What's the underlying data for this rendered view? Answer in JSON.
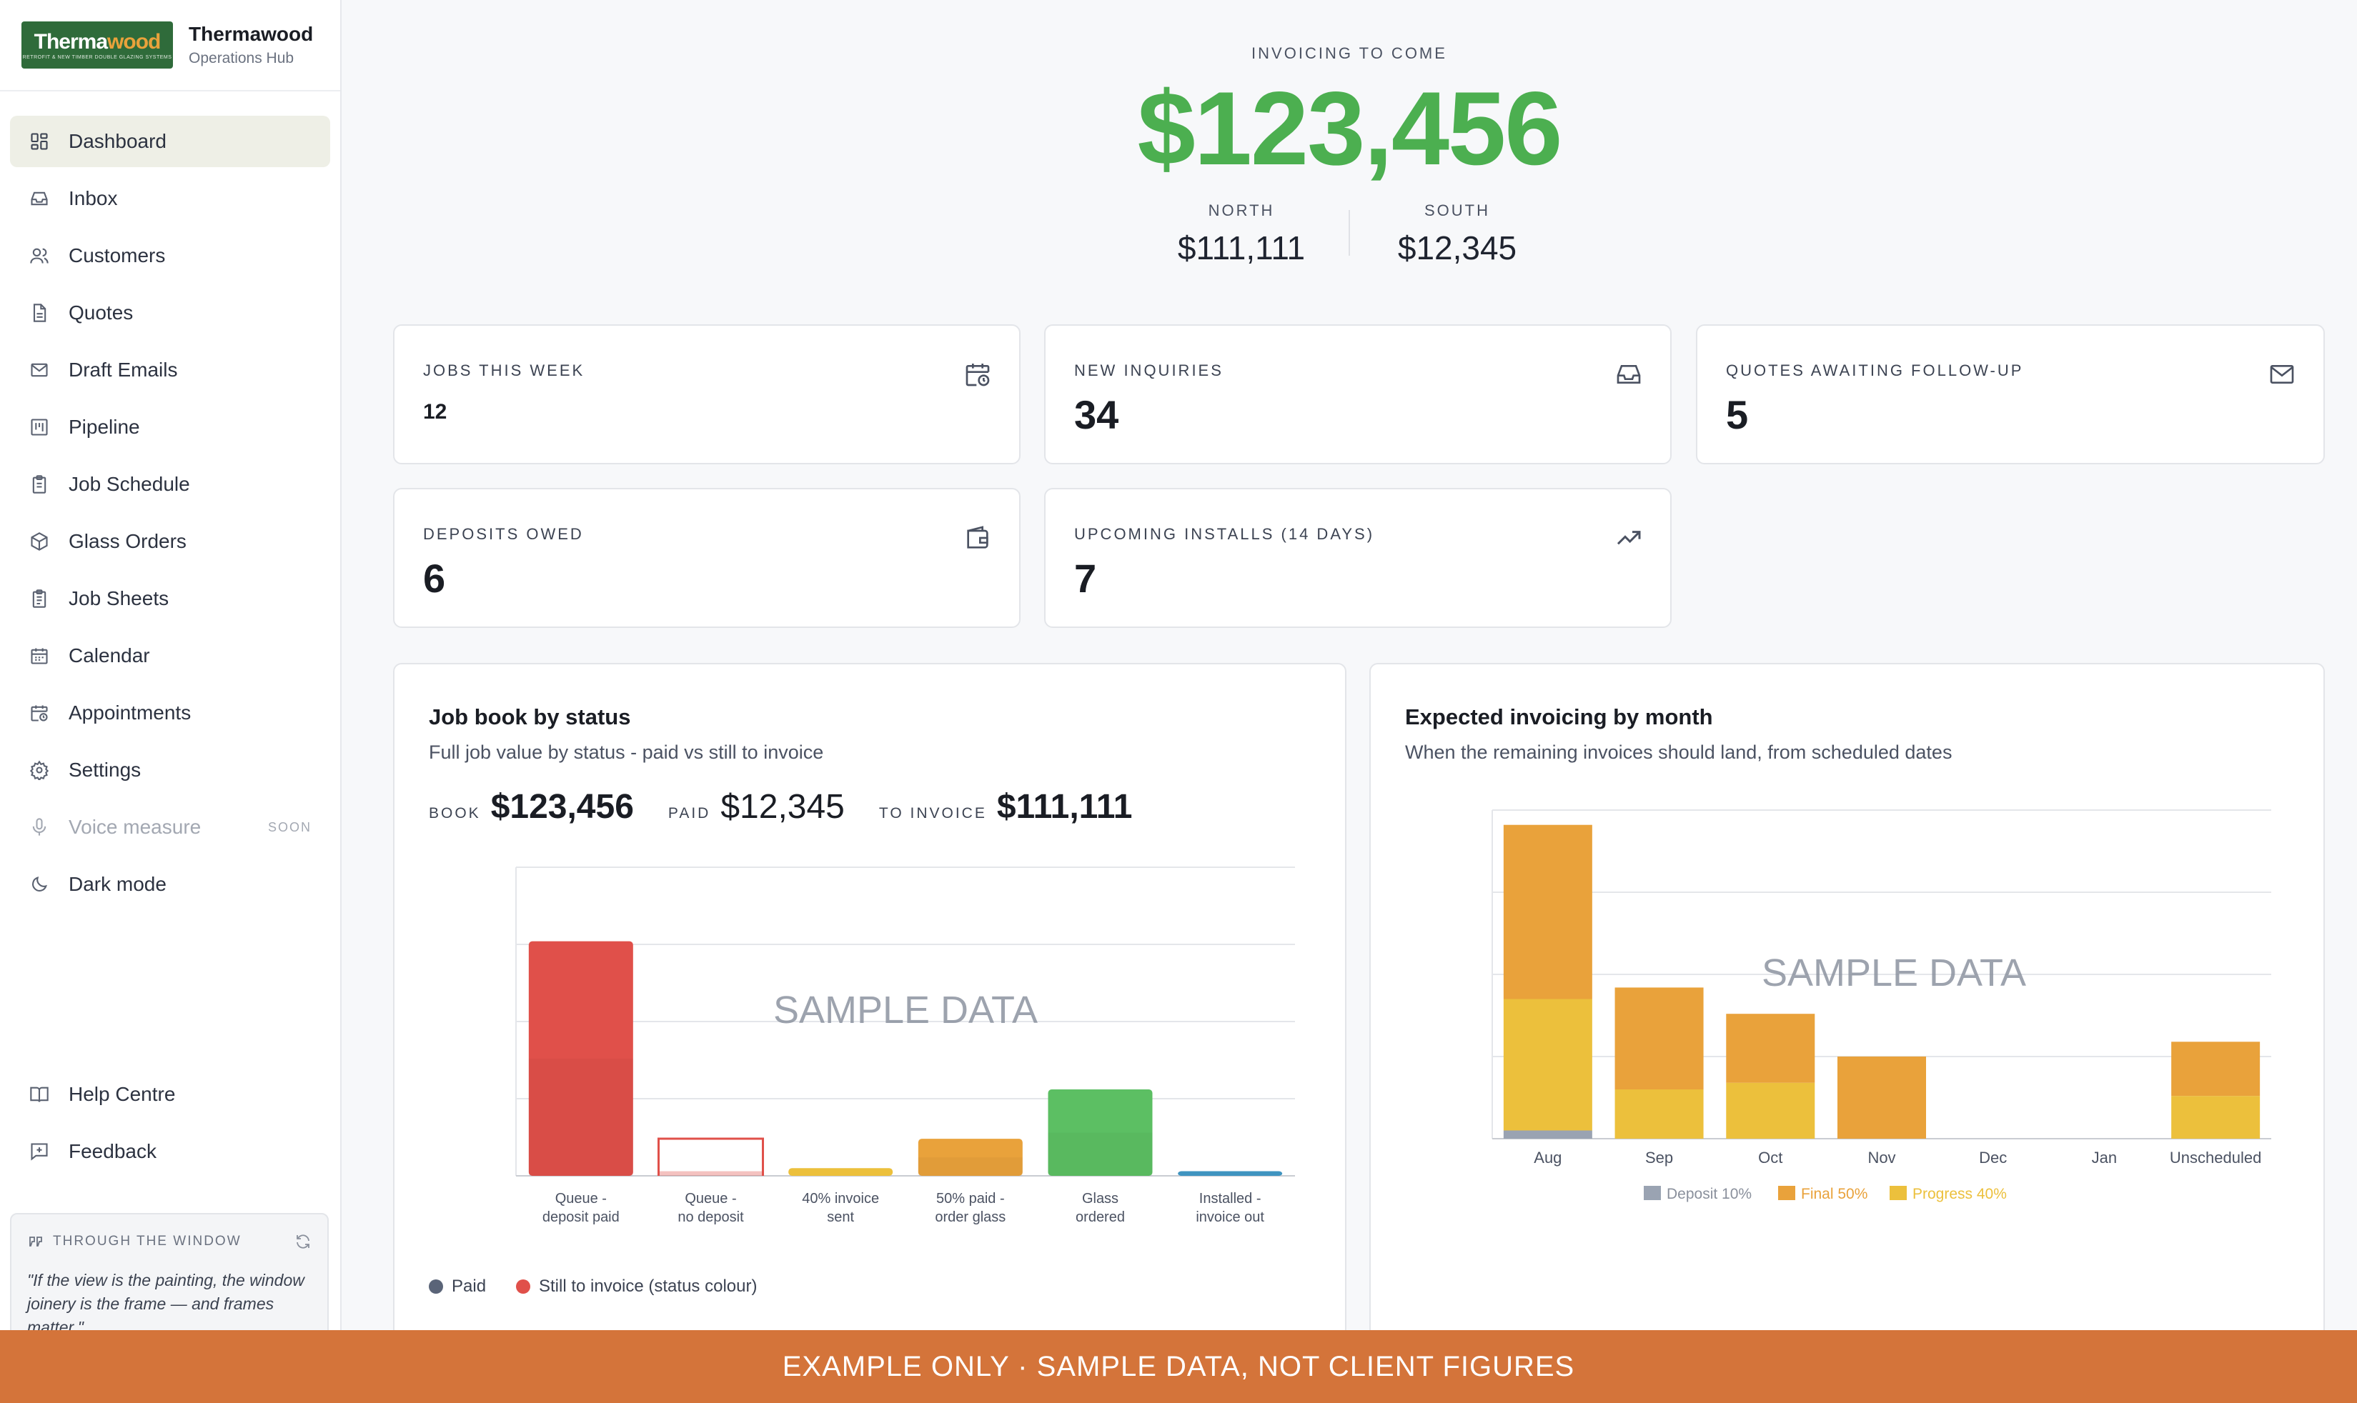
{
  "brand": {
    "logo_text_a": "Therma",
    "logo_text_b": "wood",
    "logo_tagline": "RETROFIT & NEW TIMBER DOUBLE GLAZING SYSTEMS",
    "name": "Thermawood",
    "subtitle": "Operations Hub"
  },
  "sidebar": {
    "items": [
      {
        "label": "Dashboard",
        "icon": "dashboard-icon",
        "active": true
      },
      {
        "label": "Inbox",
        "icon": "inbox-icon"
      },
      {
        "label": "Customers",
        "icon": "users-icon"
      },
      {
        "label": "Quotes",
        "icon": "document-icon"
      },
      {
        "label": "Draft Emails",
        "icon": "mail-icon"
      },
      {
        "label": "Pipeline",
        "icon": "kanban-icon"
      },
      {
        "label": "Job Schedule",
        "icon": "clipboard-icon"
      },
      {
        "label": "Glass Orders",
        "icon": "package-icon"
      },
      {
        "label": "Job Sheets",
        "icon": "clipboard-list-icon"
      },
      {
        "label": "Calendar",
        "icon": "calendar-icon"
      },
      {
        "label": "Appointments",
        "icon": "calendar-clock-icon"
      },
      {
        "label": "Settings",
        "icon": "gear-icon"
      },
      {
        "label": "Voice measure",
        "icon": "microphone-icon",
        "disabled": true,
        "badge": "SOON"
      },
      {
        "label": "Dark mode",
        "icon": "moon-icon"
      }
    ],
    "bottom_items": [
      {
        "label": "Help Centre",
        "icon": "book-icon"
      },
      {
        "label": "Feedback",
        "icon": "feedback-icon"
      }
    ],
    "quote_card": {
      "title": "THROUGH THE WINDOW",
      "text": "\"If the view is the painting, the window joinery is the frame — and frames matter.\""
    }
  },
  "hero": {
    "label": "INVOICING TO COME",
    "amount": "$123,456",
    "north_label": "NORTH",
    "north_value": "$111,111",
    "south_label": "SOUTH",
    "south_value": "$12,345"
  },
  "stats": {
    "jobs_week": {
      "label": "JOBS THIS WEEK",
      "value": "12",
      "icon": "calendar-clock-icon"
    },
    "new_inquiries": {
      "label": "NEW INQUIRIES",
      "value": "34",
      "icon": "inbox-icon"
    },
    "quotes_followup": {
      "label": "QUOTES AWAITING FOLLOW-UP",
      "value": "5",
      "icon": "mail-icon"
    },
    "deposits_owed": {
      "label": "DEPOSITS OWED",
      "value": "6",
      "icon": "wallet-icon"
    },
    "upcoming_installs": {
      "label": "UPCOMING INSTALLS (14 DAYS)",
      "value": "7",
      "icon": "trending-up-icon"
    }
  },
  "job_book": {
    "title": "Job book by status",
    "subtitle": "Full job value by status - paid vs still to invoice",
    "book_label": "BOOK",
    "book_value": "$123,456",
    "paid_label": "PAID",
    "paid_value": "$12,345",
    "to_invoice_label": "TO INVOICE",
    "to_invoice_value": "$111,111",
    "watermark": "SAMPLE DATA"
  },
  "expected_invoicing": {
    "title": "Expected invoicing by month",
    "subtitle": "When the remaining invoices should land, from scheduled dates",
    "watermark": "SAMPLE DATA"
  },
  "chart_data": [
    {
      "type": "bar",
      "title": "Job book by status",
      "categories": [
        [
          "Queue -",
          "deposit paid"
        ],
        [
          "Queue -",
          "no deposit"
        ],
        [
          "40% invoice",
          "sent"
        ],
        [
          "50% paid -",
          "order glass"
        ],
        [
          "Glass",
          "ordered"
        ],
        [
          "Installed -",
          "invoice out"
        ]
      ],
      "ylim": [
        0,
        100
      ],
      "series": [
        {
          "name": "Paid",
          "color": "#5a6478",
          "values": [
            0,
            0,
            0,
            0,
            0,
            0
          ]
        },
        {
          "name": "Still to invoice (status colour)",
          "colors": [
            "#e0504a",
            "#e0504a",
            "#ecc03c",
            "#e9a23b",
            "#5cbf63",
            "#3f94c0"
          ],
          "values": [
            76,
            1.5,
            2.5,
            12,
            28,
            1.5
          ]
        }
      ],
      "hollow": [
        false,
        true,
        false,
        false,
        false,
        false
      ],
      "grid": true,
      "legend": "bottom-left"
    },
    {
      "type": "bar",
      "stacked": true,
      "title": "Expected invoicing by month",
      "categories": [
        "Aug",
        "Sep",
        "Oct",
        "Nov",
        "Dec",
        "Jan",
        "Unscheduled"
      ],
      "ylim": [
        0,
        200
      ],
      "series": [
        {
          "name": "Deposit 10%",
          "color": "#9aa3b2",
          "values": [
            5,
            0,
            0,
            0,
            0,
            0,
            0
          ]
        },
        {
          "name": "Progress 40%",
          "color": "#ecc03c",
          "values": [
            80,
            30,
            34,
            0,
            0,
            0,
            26
          ]
        },
        {
          "name": "Final 50%",
          "color": "#e9a23b",
          "values": [
            106,
            62,
            42,
            50,
            0,
            0,
            33
          ]
        }
      ],
      "grid": true,
      "legend": "bottom-center"
    }
  ],
  "banner": {
    "text": "EXAMPLE ONLY  ·  SAMPLE DATA, NOT CLIENT FIGURES"
  }
}
